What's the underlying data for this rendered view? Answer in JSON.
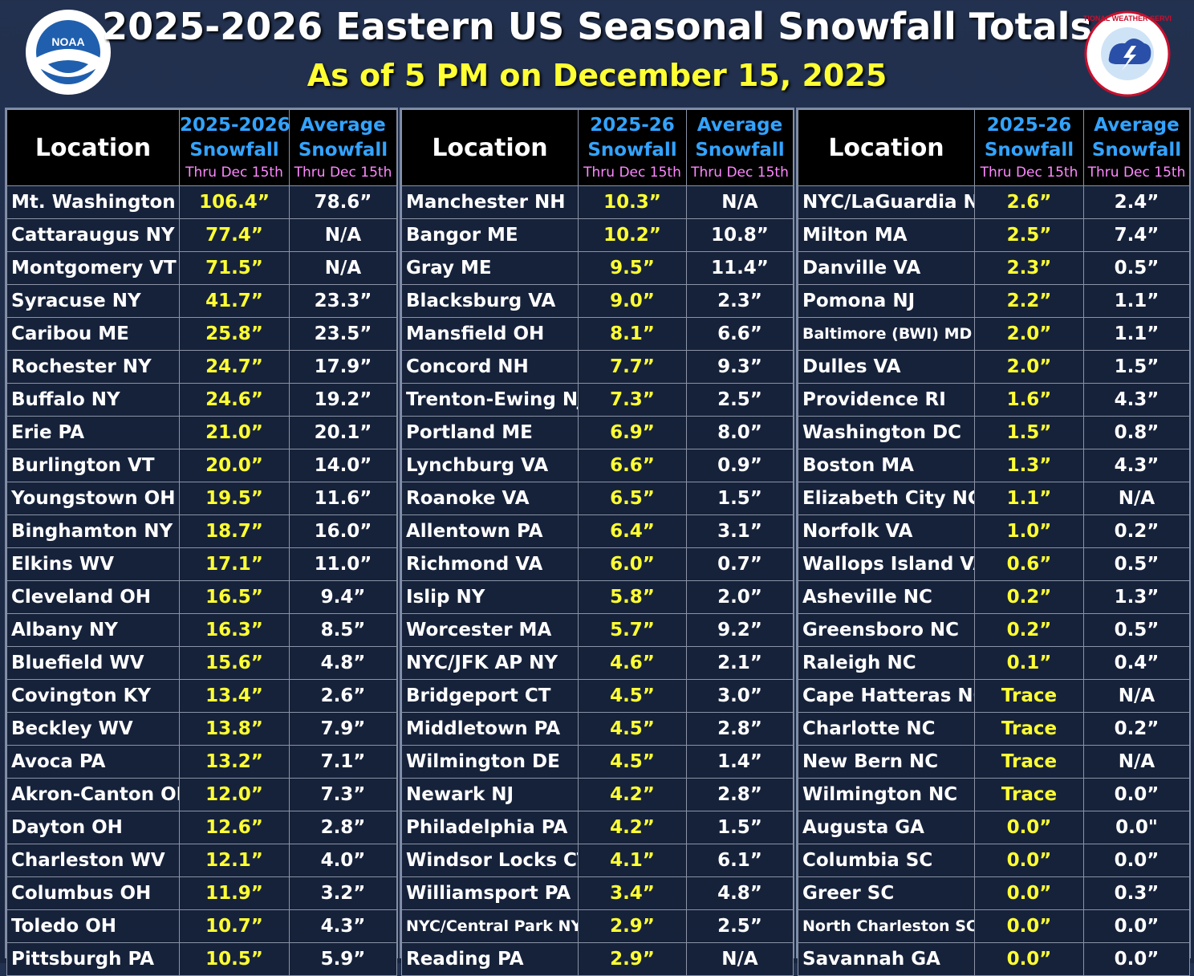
{
  "header": {
    "title": "2025-2026 Eastern US Seasonal Snowfall Totals",
    "subtitle": "As of 5 PM on December 15, 2025",
    "noaa_logo_text": "NOAA",
    "nws_logo_text": "NATIONAL WEATHER SERVICE"
  },
  "colors": {
    "background": "#22314f",
    "snowfall_value": "#ffff33",
    "header_blue": "#33a3ff",
    "header_pink": "#ff88ff"
  },
  "chart_data": [
    {
      "type": "table",
      "columns": {
        "location": "Location",
        "snow_l1": "2025-2026",
        "snow_l2": "Snowfall",
        "snow_l3": "Thru Dec 15th",
        "avg_l1": "Average",
        "avg_l2": "Snowfall",
        "avg_l3": "Thru Dec 15th"
      },
      "rows": [
        [
          "Mt. Washington NH",
          "106.4”",
          "78.6”"
        ],
        [
          "Cattaraugus NY",
          "77.4”",
          "N/A"
        ],
        [
          "Montgomery VT",
          "71.5”",
          "N/A"
        ],
        [
          "Syracuse NY",
          "41.7”",
          "23.3”"
        ],
        [
          "Caribou ME",
          "25.8”",
          "23.5”"
        ],
        [
          "Rochester NY",
          "24.7”",
          "17.9”"
        ],
        [
          "Buffalo NY",
          "24.6”",
          "19.2”"
        ],
        [
          "Erie PA",
          "21.0”",
          "20.1”"
        ],
        [
          "Burlington VT",
          "20.0”",
          "14.0”"
        ],
        [
          "Youngstown OH",
          "19.5”",
          "11.6”"
        ],
        [
          "Binghamton NY",
          "18.7”",
          "16.0”"
        ],
        [
          "Elkins WV",
          "17.1”",
          "11.0”"
        ],
        [
          "Cleveland OH",
          "16.5”",
          "9.4”"
        ],
        [
          "Albany NY",
          "16.3”",
          "8.5”"
        ],
        [
          "Bluefield WV",
          "15.6”",
          "4.8”"
        ],
        [
          "Covington KY",
          "13.4”",
          "2.6”"
        ],
        [
          "Beckley WV",
          "13.8”",
          "7.9”"
        ],
        [
          "Avoca PA",
          "13.2”",
          "7.1”"
        ],
        [
          "Akron-Canton OH",
          "12.0”",
          "7.3”"
        ],
        [
          "Dayton OH",
          "12.6”",
          "2.8”"
        ],
        [
          "Charleston WV",
          "12.1”",
          "4.0”"
        ],
        [
          "Columbus OH",
          "11.9”",
          "3.2”"
        ],
        [
          "Toledo OH",
          "10.7”",
          "4.3”"
        ],
        [
          "Pittsburgh PA",
          "10.5”",
          "5.9”"
        ]
      ]
    },
    {
      "type": "table",
      "columns": {
        "location": "Location",
        "snow_l1": "2025-26",
        "snow_l2": "Snowfall",
        "snow_l3": "Thru Dec 15th",
        "avg_l1": "Average",
        "avg_l2": "Snowfall",
        "avg_l3": "Thru Dec 15th"
      },
      "rows": [
        [
          "Manchester NH",
          "10.3”",
          "N/A"
        ],
        [
          "Bangor ME",
          "10.2”",
          "10.8”"
        ],
        [
          "Gray ME",
          "9.5”",
          "11.4”"
        ],
        [
          "Blacksburg VA",
          "9.0”",
          "2.3”"
        ],
        [
          "Mansfield OH",
          "8.1”",
          "6.6”"
        ],
        [
          "Concord NH",
          "7.7”",
          "9.3”"
        ],
        [
          "Trenton-Ewing NJ",
          "7.3”",
          "2.5”"
        ],
        [
          "Portland ME",
          "6.9”",
          "8.0”"
        ],
        [
          "Lynchburg VA",
          "6.6”",
          "0.9”"
        ],
        [
          "Roanoke VA",
          "6.5”",
          "1.5”"
        ],
        [
          "Allentown PA",
          "6.4”",
          "3.1”"
        ],
        [
          "Richmond VA",
          "6.0”",
          "0.7”"
        ],
        [
          "Islip NY",
          "5.8”",
          "2.0”"
        ],
        [
          "Worcester MA",
          "5.7”",
          "9.2”"
        ],
        [
          "NYC/JFK AP NY",
          "4.6”",
          "2.1”"
        ],
        [
          "Bridgeport CT",
          "4.5”",
          "3.0”"
        ],
        [
          "Middletown PA",
          "4.5”",
          "2.8”"
        ],
        [
          "Wilmington DE",
          "4.5”",
          "1.4”"
        ],
        [
          "Newark NJ",
          "4.2”",
          "2.8”"
        ],
        [
          "Philadelphia PA",
          "4.2”",
          "1.5”"
        ],
        [
          "Windsor Locks CT",
          "4.1”",
          "6.1”"
        ],
        [
          "Williamsport PA",
          "3.4”",
          "4.8”"
        ],
        [
          "NYC/Central Park NY",
          "2.9”",
          "2.5”"
        ],
        [
          "Reading PA",
          "2.9”",
          "N/A"
        ]
      ]
    },
    {
      "type": "table",
      "columns": {
        "location": "Location",
        "snow_l1": "2025-26",
        "snow_l2": "Snowfall",
        "snow_l3": "Thru Dec 15th",
        "avg_l1": "Average",
        "avg_l2": "Snowfall",
        "avg_l3": "Thru Dec 15th"
      },
      "rows": [
        [
          "NYC/LaGuardia NY",
          "2.6”",
          "2.4”"
        ],
        [
          "Milton MA",
          "2.5”",
          "7.4”"
        ],
        [
          "Danville VA",
          "2.3”",
          "0.5”"
        ],
        [
          "Pomona NJ",
          "2.2”",
          "1.1”"
        ],
        [
          "Baltimore (BWI) MD",
          "2.0”",
          "1.1”"
        ],
        [
          "Dulles VA",
          "2.0”",
          "1.5”"
        ],
        [
          "Providence RI",
          "1.6”",
          "4.3”"
        ],
        [
          "Washington DC",
          "1.5”",
          "0.8”"
        ],
        [
          "Boston MA",
          "1.3”",
          "4.3”"
        ],
        [
          "Elizabeth City NC",
          "1.1”",
          "N/A"
        ],
        [
          "Norfolk VA",
          "1.0”",
          "0.2”"
        ],
        [
          "Wallops Island VA",
          "0.6”",
          "0.5”"
        ],
        [
          "Asheville NC",
          "0.2”",
          "1.3”"
        ],
        [
          "Greensboro NC",
          "0.2”",
          "0.5”"
        ],
        [
          "Raleigh NC",
          "0.1”",
          "0.4”"
        ],
        [
          "Cape Hatteras NC",
          "Trace",
          "N/A"
        ],
        [
          "Charlotte NC",
          "Trace",
          "0.2”"
        ],
        [
          "New Bern NC",
          "Trace",
          "N/A"
        ],
        [
          "Wilmington NC",
          "Trace",
          "0.0”"
        ],
        [
          "Augusta GA",
          "0.0”",
          "0.0\""
        ],
        [
          "Columbia SC",
          "0.0”",
          "0.0”"
        ],
        [
          "Greer SC",
          "0.0”",
          "0.3”"
        ],
        [
          "North Charleston SC",
          "0.0”",
          "0.0”"
        ],
        [
          "Savannah GA",
          "0.0”",
          "0.0”"
        ]
      ]
    }
  ]
}
